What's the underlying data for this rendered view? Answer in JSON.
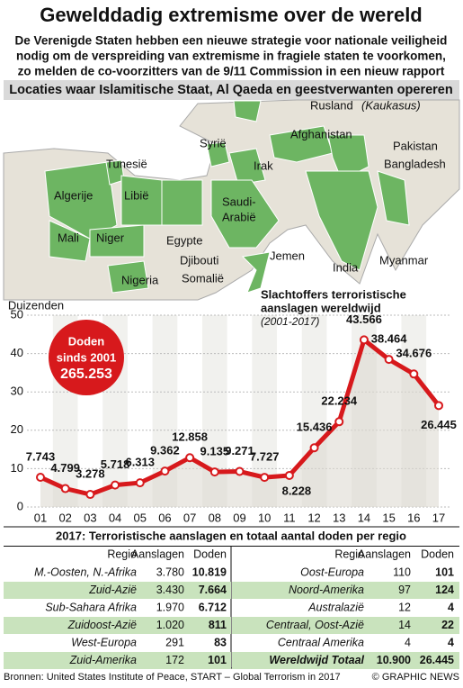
{
  "header": {
    "title": "Gewelddadig extremisme over de wereld",
    "subtitle": [
      "De Verenigde Staten hebben een nieuwe strategie voor nationale veiligheid",
      "nodig om de verspreiding van extremisme in fragiele staten te voorkomen,",
      "zo melden de co-voorzitters van de 9/11 Commission in een nieuw rapport"
    ]
  },
  "map": {
    "title": "Locaties waar Islamitische Staat, Al Qaeda en geestverwanten opereren",
    "labels": [
      [
        "Rusland"
      ],
      [
        "(Kaukasus)"
      ],
      [
        "Syrië"
      ],
      [
        "Afghanistan"
      ],
      [
        "Pakistan"
      ],
      [
        "Tunesië"
      ],
      [
        "Irak"
      ],
      [
        "Bangladesh"
      ],
      [
        "Algerije"
      ],
      [
        "Libië"
      ],
      [
        "Saudi-",
        "Arabië"
      ],
      [
        "Mali"
      ],
      [
        "Niger"
      ],
      [
        "Egypte"
      ],
      [
        "Jemen"
      ],
      [
        "Djibouti"
      ],
      [
        "India"
      ],
      [
        "Myanmar"
      ],
      [
        "Somalië"
      ],
      [
        "Nigeria"
      ]
    ]
  },
  "chart_data": {
    "type": "line",
    "title": [
      "Slachtoffers terroristische",
      "aanslagen wereldwijd"
    ],
    "subtitle": "(2001-2017)",
    "y_label": "Duizenden",
    "categories": [
      "01",
      "02",
      "03",
      "04",
      "05",
      "06",
      "07",
      "08",
      "09",
      "10",
      "11",
      "12",
      "13",
      "14",
      "15",
      "16",
      "17"
    ],
    "values": [
      7.743,
      4.799,
      3.278,
      5.718,
      6.313,
      9.362,
      12.858,
      9.135,
      9.271,
      7.727,
      8.228,
      15.436,
      22.234,
      43.566,
      38.464,
      34.676,
      26.445
    ],
    "color": "#d7191c",
    "ylim": [
      0,
      50
    ],
    "yticks": [
      0,
      10,
      20,
      30,
      40,
      50
    ],
    "annotation": [
      "Doden",
      "sinds 2001",
      "265.253"
    ]
  },
  "table": {
    "title": "2017: Terroristische aanslagen en totaal aantal doden per regio",
    "headers": [
      "Regio",
      "Aanslagen",
      "Doden"
    ],
    "left": [
      [
        "M.-Oosten, N.-Afrika",
        "3.780",
        "10.819"
      ],
      [
        "Zuid-Azië",
        "3.430",
        "7.664"
      ],
      [
        "Sub-Sahara Afrika",
        "1.970",
        "6.712"
      ],
      [
        "Zuidoost-Azië",
        "1.020",
        "811"
      ],
      [
        "West-Europa",
        "291",
        "83"
      ],
      [
        "Zuid-Amerika",
        "172",
        "101"
      ]
    ],
    "right": [
      [
        "Oost-Europa",
        "110",
        "101"
      ],
      [
        "Noord-Amerika",
        "97",
        "124"
      ],
      [
        "Australazië",
        "12",
        "4"
      ],
      [
        "Centraal, Oost-Azië",
        "14",
        "22"
      ],
      [
        "Centraal Amerika",
        "4",
        "4"
      ],
      [
        "Wereldwijd Totaal",
        "10.900",
        "26.445"
      ]
    ]
  },
  "footer": {
    "source": "Bronnen: United States Institute of Peace, START – Global Terrorism in 2017",
    "credit": "© GRAPHIC NEWS"
  }
}
